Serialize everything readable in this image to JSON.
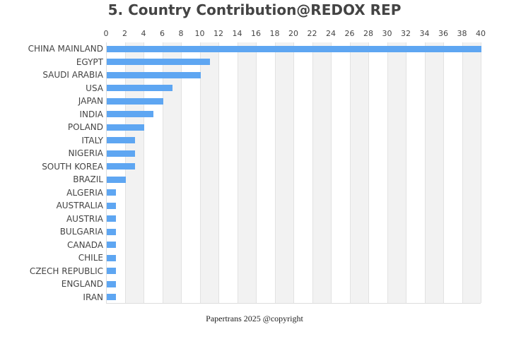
{
  "chart_data": {
    "type": "bar",
    "orientation": "horizontal",
    "title": "5. Country Contribution@REDOX REP",
    "xlabel": "",
    "ylabel": "",
    "xlim": [
      0,
      40
    ],
    "x_ticks": [
      0,
      2,
      4,
      6,
      8,
      10,
      12,
      14,
      16,
      18,
      20,
      22,
      24,
      26,
      28,
      30,
      32,
      34,
      36,
      38,
      40
    ],
    "x_axis_position": "top",
    "grid": true,
    "alternating_bands": true,
    "bar_color": "#5ea6f2",
    "categories": [
      "CHINA MAINLAND",
      "EGYPT",
      "SAUDI ARABIA",
      "USA",
      "JAPAN",
      "INDIA",
      "POLAND",
      "ITALY",
      "NIGERIA",
      "SOUTH KOREA",
      "BRAZIL",
      "ALGERIA",
      "AUSTRALIA",
      "AUSTRIA",
      "BULGARIA",
      "CANADA",
      "CHILE",
      "CZECH REPUBLIC",
      "ENGLAND",
      "IRAN"
    ],
    "values": [
      40,
      11,
      10,
      7,
      6,
      5,
      4,
      3,
      3,
      3,
      2,
      1,
      1,
      1,
      1,
      1,
      1,
      1,
      1,
      1
    ]
  },
  "footer": "Papertrans 2025 @copyright"
}
